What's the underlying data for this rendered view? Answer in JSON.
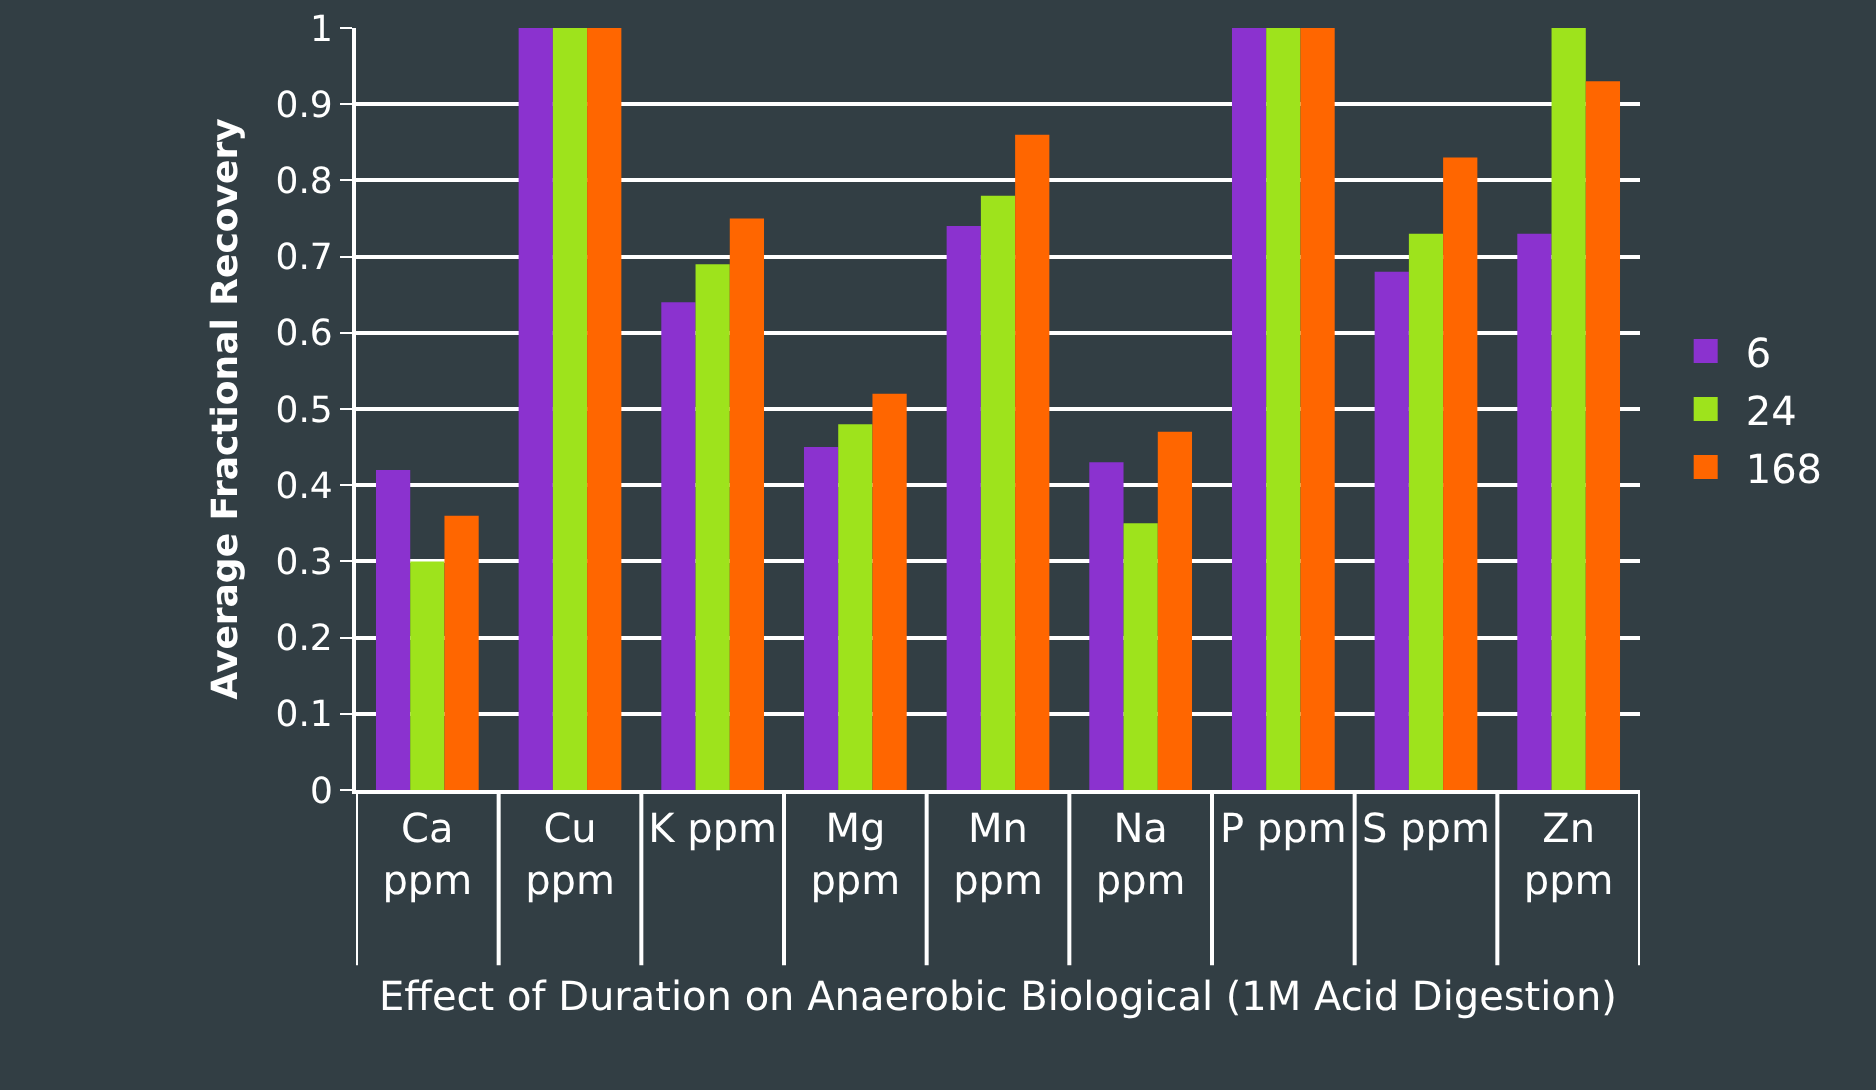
{
  "chart_data": {
    "type": "bar",
    "xlabel": "Effect of Duration on Anaerobic Biological (1M Acid Digestion)",
    "ylabel": "Average Fractional Recovery",
    "categories": [
      "Ca ppm",
      "Cu ppm",
      "K ppm",
      "Mg ppm",
      "Mn ppm",
      "Na ppm",
      "P ppm",
      "S ppm",
      "Zn ppm"
    ],
    "series": [
      {
        "name": "6",
        "color": "#8b32cf",
        "values": [
          0.42,
          1,
          0.64,
          0.45,
          0.74,
          0.43,
          1,
          0.68,
          0.73
        ]
      },
      {
        "name": "24",
        "color": "#9ee31c",
        "values": [
          0.3,
          1,
          0.69,
          0.48,
          0.78,
          0.35,
          1,
          0.73,
          1
        ]
      },
      {
        "name": "168",
        "color": "#ff6600",
        "values": [
          0.36,
          1,
          0.75,
          0.52,
          0.86,
          0.47,
          1,
          0.83,
          0.93
        ]
      }
    ],
    "ylim": [
      0,
      1
    ],
    "yticks": [
      0,
      0.1,
      0.2,
      0.3,
      0.4,
      0.5,
      0.6,
      0.7,
      0.8,
      0.9,
      1
    ],
    "grid": "y",
    "legend": "right"
  }
}
